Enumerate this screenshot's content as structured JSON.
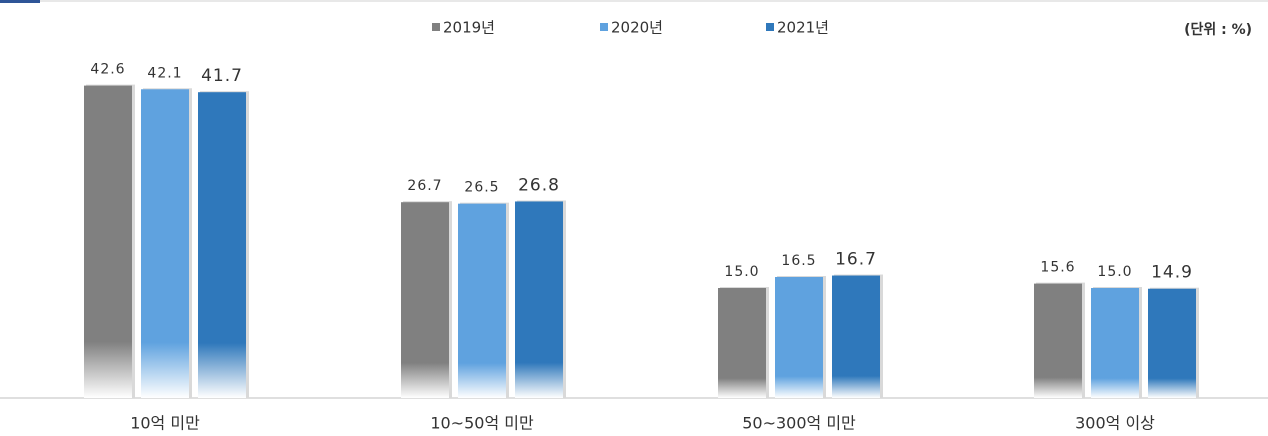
{
  "chart_data": {
    "type": "bar",
    "unit_label": "(단위 : %)",
    "categories": [
      "10억 미만",
      "10~50억 미만",
      "50~300억 미만",
      "300억 이상"
    ],
    "series": [
      {
        "name": "2019년",
        "color": "#808080",
        "values": [
          42.6,
          26.7,
          15.0,
          15.6
        ],
        "value_labels": [
          "42.6",
          "26.7",
          "15.0",
          "15.6"
        ]
      },
      {
        "name": "2020년",
        "color": "#5fa2df",
        "values": [
          42.1,
          26.5,
          16.5,
          15.0
        ],
        "value_labels": [
          "42.1",
          "26.5",
          "16.5",
          "15.0"
        ]
      },
      {
        "name": "2021년",
        "color": "#2f78bb",
        "values": [
          41.7,
          26.8,
          16.7,
          14.9
        ],
        "value_labels": [
          "41.7",
          "26.8",
          "16.7",
          "14.9"
        ]
      }
    ],
    "ylim": [
      0,
      45
    ]
  }
}
